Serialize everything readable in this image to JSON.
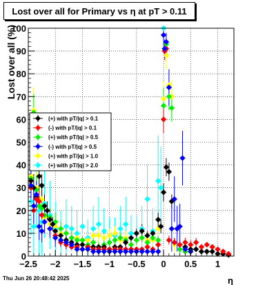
{
  "title": "Lost over all for Primary vs    η  at pT > 0.11",
  "datestamp": "Thu Jun 26 20:48:42 2025",
  "chart_data": {
    "type": "scatter",
    "title": "Lost over all for Primary vs    η  at pT > 0.11",
    "xlabel": "η",
    "ylabel": "Lost over all (%)",
    "xlim": [
      -2.5,
      1.3
    ],
    "ylim": [
      0,
      100
    ],
    "xticks": [
      -2.5,
      -2,
      -1.5,
      -1,
      -0.5,
      0,
      0.5,
      1
    ],
    "xtick_labels": [
      "−2.5",
      "−2",
      "−1.5",
      "−1",
      "−0.5",
      "0",
      "0.5",
      "1"
    ],
    "yticks": [
      0,
      10,
      20,
      30,
      40,
      50,
      60,
      70,
      80,
      90,
      100
    ],
    "ytick_labels": [
      "0",
      "10",
      "20",
      "30",
      "40",
      "50",
      "60",
      "70",
      "80",
      "90",
      "100"
    ],
    "grid": true,
    "legend_position": "left-middle",
    "series": [
      {
        "name": "(+) with pT/|q| > 0.1",
        "color": "#000000",
        "x": [
          -2.45,
          -2.4,
          -2.35,
          -2.3,
          -2.25,
          -2.2,
          -2.15,
          -2.1,
          -2.05,
          -2.0,
          -1.9,
          -1.8,
          -1.7,
          -1.6,
          -1.5,
          -1.4,
          -1.3,
          -1.2,
          -1.1,
          -1.0,
          -0.9,
          -0.8,
          -0.7,
          -0.6,
          -0.5,
          -0.4,
          -0.3,
          -0.2,
          -0.1,
          -0.05,
          0.0,
          0.05,
          0.1,
          0.15,
          0.2,
          0.3,
          0.4,
          0.5,
          0.6,
          0.7,
          0.8,
          0.9,
          1.0,
          1.1,
          1.2
        ],
        "y": [
          33,
          30,
          26,
          35,
          31,
          22,
          20,
          16,
          14,
          11,
          9,
          7,
          6,
          5,
          5,
          4,
          4,
          4,
          4,
          3,
          4,
          4,
          6,
          8,
          10,
          11,
          9,
          10,
          16,
          13,
          28,
          39,
          37,
          24,
          6,
          5,
          4,
          3,
          3,
          2,
          2,
          2,
          1,
          1,
          0.5
        ],
        "err": [
          4,
          6,
          5,
          6,
          5,
          5,
          4,
          4,
          3,
          3,
          2,
          2,
          2,
          1,
          1,
          1,
          1,
          1,
          1,
          1,
          1,
          1,
          2,
          2,
          2,
          3,
          2,
          2,
          3,
          3,
          4,
          4,
          4,
          3,
          2,
          1,
          1,
          1,
          1,
          1,
          1,
          1,
          1,
          1,
          1
        ]
      },
      {
        "name": "(-) with pT/|q| > 0.1",
        "color": "#ff0000",
        "x": [
          -2.45,
          -2.4,
          -2.35,
          -2.3,
          -2.25,
          -2.2,
          -2.1,
          -2.0,
          -1.9,
          -1.8,
          -1.7,
          -1.6,
          -1.5,
          -1.4,
          -1.3,
          -1.2,
          -1.1,
          -1.0,
          -0.9,
          -0.8,
          -0.7,
          -0.6,
          -0.5,
          -0.4,
          -0.3,
          -0.2,
          -0.1,
          0.0,
          0.02,
          0.05,
          0.1,
          0.2,
          0.3,
          0.4,
          0.5,
          0.6,
          0.7,
          0.8,
          0.9,
          1.0,
          1.1,
          1.2
        ],
        "y": [
          30,
          20,
          25,
          24,
          18,
          15,
          12,
          9,
          6,
          5,
          4,
          4,
          3,
          4,
          3,
          3,
          3,
          3,
          3,
          3,
          3,
          3,
          3,
          3,
          4,
          3,
          5,
          60,
          90,
          91,
          7,
          6,
          5,
          6,
          5,
          6,
          4,
          5,
          4,
          3,
          2,
          1
        ],
        "err": [
          5,
          6,
          5,
          5,
          4,
          4,
          3,
          3,
          2,
          2,
          1,
          1,
          1,
          1,
          1,
          1,
          1,
          1,
          1,
          1,
          1,
          1,
          1,
          1,
          1,
          1,
          2,
          6,
          4,
          4,
          2,
          2,
          2,
          2,
          2,
          2,
          1,
          1,
          1,
          1,
          1,
          1
        ]
      },
      {
        "name": "(+) with pT/|q| > 0.5",
        "color": "#00ee00",
        "x": [
          -2.45,
          -2.4,
          -2.35,
          -2.3,
          -2.25,
          -2.2,
          -2.1,
          -2.0,
          -1.9,
          -1.8,
          -1.7,
          -1.6,
          -1.5,
          -1.4,
          -1.3,
          -1.2,
          -1.1,
          -1.0,
          -0.9,
          -0.8,
          -0.7,
          -0.6,
          -0.5,
          -0.4,
          -0.3,
          -0.2,
          -0.1,
          0.0,
          0.05,
          0.1,
          0.15,
          0.2,
          0.3,
          0.4,
          0.5
        ],
        "y": [
          34,
          63,
          29,
          22,
          21,
          18,
          17,
          15,
          12,
          10,
          8,
          7,
          7,
          5,
          6,
          4,
          5,
          6,
          7,
          8,
          7,
          5,
          7,
          8,
          6,
          8,
          7,
          66,
          93,
          70,
          65,
          6,
          3,
          2,
          2
        ],
        "err": [
          6,
          8,
          6,
          5,
          5,
          5,
          4,
          4,
          3,
          3,
          3,
          2,
          2,
          2,
          2,
          2,
          2,
          2,
          2,
          2,
          2,
          2,
          2,
          2,
          2,
          2,
          2,
          8,
          5,
          6,
          6,
          2,
          2,
          1,
          1
        ]
      },
      {
        "name": "(-) with pT/|q| > 0.5",
        "color": "#0000ff",
        "x": [
          -2.45,
          -2.4,
          -2.35,
          -2.3,
          -2.25,
          -2.2,
          -2.1,
          -2.0,
          -1.9,
          -1.8,
          -1.7,
          -1.6,
          -1.5,
          -1.4,
          -1.3,
          -1.2,
          -1.1,
          -1.0,
          -0.9,
          -0.8,
          -0.7,
          -0.6,
          -0.5,
          -0.4,
          -0.3,
          -0.2,
          -0.1,
          0.0,
          0.02,
          0.05,
          0.1,
          0.15,
          0.2,
          0.25,
          0.3,
          0.35,
          0.4,
          0.5
        ],
        "y": [
          31,
          22,
          27,
          13,
          11,
          15,
          12,
          8,
          7,
          6,
          5,
          3,
          3,
          3,
          2,
          2,
          2,
          2,
          2,
          2,
          2,
          2,
          2,
          2,
          2,
          2,
          2,
          97,
          91,
          94,
          74,
          12,
          25,
          12,
          13,
          43,
          3,
          2
        ],
        "err": [
          8,
          8,
          6,
          6,
          5,
          5,
          4,
          4,
          3,
          3,
          2,
          2,
          2,
          2,
          2,
          2,
          2,
          2,
          2,
          2,
          2,
          2,
          2,
          2,
          2,
          2,
          2,
          5,
          4,
          4,
          8,
          10,
          10,
          10,
          10,
          12,
          2,
          2
        ]
      },
      {
        "name": "(+) with pT/|q| > 1.0",
        "color": "#ffff00",
        "x": [
          -2.45,
          -2.4,
          -2.35,
          -2.3,
          -2.25,
          -2.2,
          -2.1,
          -2.0,
          -1.9,
          -1.8,
          -1.7,
          -1.6,
          -1.5,
          -1.4,
          -1.3,
          -1.2,
          -1.1,
          -1.0,
          -0.9,
          -0.8,
          -0.7,
          -0.6,
          -0.5,
          -0.4,
          -0.3,
          -0.2,
          -0.1,
          0.0,
          0.05,
          0.1,
          0.15,
          0.2,
          0.3
        ],
        "y": [
          35,
          64,
          30,
          22,
          25,
          17,
          14,
          13,
          10,
          10,
          8,
          8,
          7,
          7,
          9,
          9,
          8,
          9,
          10,
          7,
          8,
          5,
          7,
          8,
          7,
          7,
          12,
          69,
          88,
          75,
          70,
          5,
          3
        ],
        "err": [
          7,
          10,
          7,
          6,
          6,
          5,
          5,
          4,
          4,
          3,
          3,
          3,
          3,
          3,
          3,
          3,
          3,
          3,
          3,
          3,
          3,
          3,
          3,
          3,
          3,
          3,
          4,
          8,
          6,
          7,
          7,
          3,
          2
        ]
      },
      {
        "name": "(+) with pT/|q| > 2.0",
        "color": "#00ffff",
        "x": [
          -2.45,
          -2.4,
          -2.35,
          -2.3,
          -2.25,
          -2.2,
          -2.1,
          -2.0,
          -1.9,
          -1.8,
          -1.7,
          -1.6,
          -1.5,
          -1.4,
          -1.3,
          -1.2,
          -1.1,
          -1.0,
          -0.9,
          -0.8,
          -0.7,
          -0.6,
          -0.5,
          -0.4,
          -0.3,
          -0.2,
          -0.1,
          -0.05,
          0.0
        ],
        "y": [
          24,
          13,
          27,
          20,
          15,
          23,
          18,
          12,
          10,
          13,
          12,
          10,
          13,
          8,
          12,
          14,
          11,
          9,
          9,
          12,
          14,
          10,
          10,
          12,
          25,
          11,
          33,
          30,
          100
        ],
        "err": [
          15,
          20,
          15,
          25,
          18,
          15,
          15,
          12,
          10,
          12,
          10,
          10,
          12,
          8,
          10,
          12,
          10,
          8,
          8,
          10,
          12,
          8,
          8,
          10,
          15,
          10,
          20,
          18,
          5
        ]
      }
    ]
  }
}
